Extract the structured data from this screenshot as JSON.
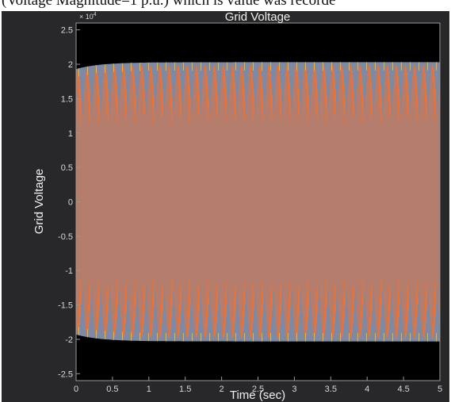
{
  "caption_fragment": "(Voltage Magnitude=1 p.u.) which is value was recorde",
  "chart_data": {
    "type": "line",
    "title": "Grid Voltage",
    "xlabel": "Time (sec)",
    "ylabel": "Grid Voltage",
    "y_exponent_label": "× 10",
    "y_exponent_power": "4",
    "xlim": [
      0,
      5
    ],
    "ylim": [
      -2.6,
      2.6
    ],
    "x_ticks": [
      0,
      0.5,
      1,
      1.5,
      2,
      2.5,
      3,
      3.5,
      4,
      4.5,
      5
    ],
    "x_tick_labels": [
      "0",
      "0.5",
      "1",
      "1.5",
      "2",
      "2.5",
      "3",
      "3.5",
      "4",
      "4.5",
      "5"
    ],
    "y_ticks": [
      2.5,
      2,
      1.5,
      1,
      0.5,
      0,
      -0.5,
      -1,
      -1.5,
      -2,
      -2.5
    ],
    "y_tick_labels": [
      "2.5",
      "2",
      "1.5",
      "1",
      "0.5",
      "0",
      "-0.5",
      "-1",
      "-1.5",
      "-2",
      "-2.5"
    ],
    "grid": false,
    "series_description_values": {
      "amplitude_steady": 2.03,
      "amplitude_initial": 1.93,
      "settle_time": 1.0,
      "beat_count": 40
    },
    "series": [
      {
        "color": "#7d8aa5"
      },
      {
        "color": "#f07030"
      },
      {
        "color": "#f3b414"
      }
    ],
    "colors": {
      "plot_background": "#000000",
      "figure_background": "#28282a"
    }
  }
}
